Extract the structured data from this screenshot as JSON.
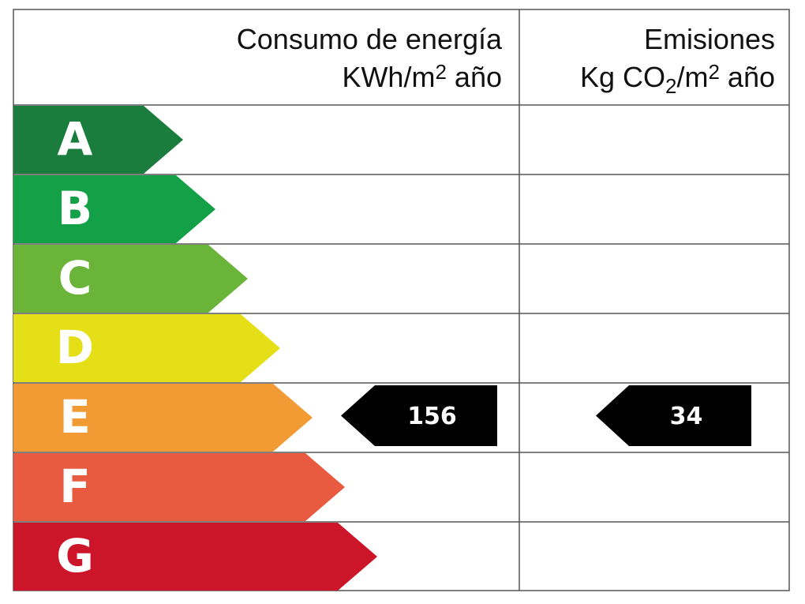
{
  "header": {
    "energy": {
      "title": "Consumo de energía",
      "unit": [
        "KWh/m",
        "2",
        " año"
      ]
    },
    "emissions": {
      "title": "Emisiones",
      "unit": [
        "Kg CO",
        "2",
        "/m",
        "2",
        " año"
      ]
    }
  },
  "rows": [
    {
      "letter": "A",
      "color": "#1b7d3d",
      "energy": null,
      "emissions": null
    },
    {
      "letter": "B",
      "color": "#14a047",
      "energy": null,
      "emissions": null
    },
    {
      "letter": "C",
      "color": "#6bb43a",
      "energy": null,
      "emissions": null
    },
    {
      "letter": "D",
      "color": "#e4df17",
      "energy": null,
      "emissions": null
    },
    {
      "letter": "E",
      "color": "#f29a34",
      "energy": 156,
      "emissions": 34
    },
    {
      "letter": "F",
      "color": "#e85b41",
      "energy": null,
      "emissions": null
    },
    {
      "letter": "G",
      "color": "#cd1529",
      "energy": null,
      "emissions": null
    }
  ]
}
